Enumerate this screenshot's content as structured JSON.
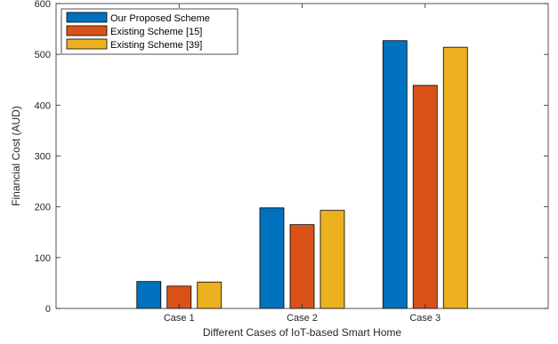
{
  "chart_data": {
    "type": "bar",
    "title": "",
    "xlabel": "Different Cases of IoT-based Smart Home",
    "ylabel": "Financial Cost (AUD)",
    "categories": [
      "Case 1",
      "Case 2",
      "Case 3"
    ],
    "ylim": [
      0,
      600
    ],
    "yticks": [
      0,
      100,
      200,
      300,
      400,
      500,
      600
    ],
    "grid": false,
    "legend_position": "top-left",
    "series": [
      {
        "name": "Our Proposed Scheme",
        "color": "#0072BD",
        "values": [
          53,
          198,
          527
        ]
      },
      {
        "name": "Existing Scheme [15]",
        "color": "#D95319",
        "values": [
          44,
          165,
          439
        ]
      },
      {
        "name": "Existing Scheme [39]",
        "color": "#EDB120",
        "values": [
          52,
          193,
          514
        ]
      }
    ]
  }
}
